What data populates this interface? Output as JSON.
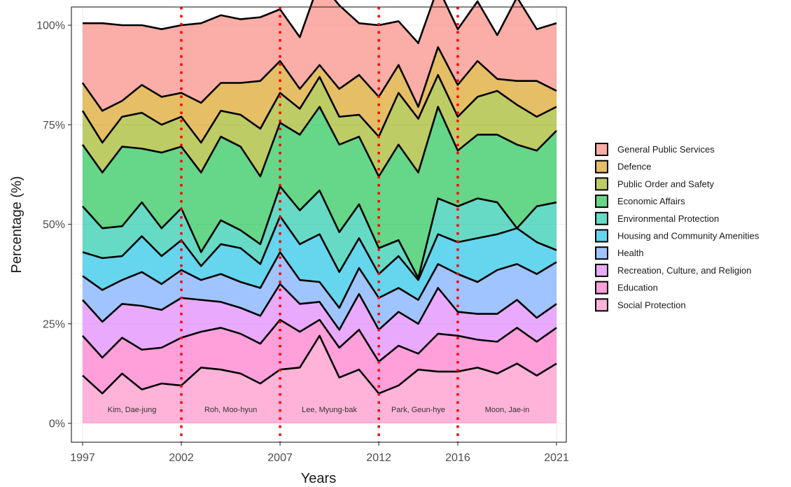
{
  "chart_data": {
    "type": "area",
    "xlabel": "Years",
    "ylabel": "Percentage (%)",
    "x": [
      1997,
      1998,
      1999,
      2000,
      2001,
      2002,
      2003,
      2004,
      2005,
      2006,
      2007,
      2008,
      2009,
      2010,
      2011,
      2012,
      2013,
      2014,
      2015,
      2016,
      2017,
      2018,
      2019,
      2020,
      2021
    ],
    "xlim": [
      1997,
      2021
    ],
    "ylim": [
      0,
      100
    ],
    "x_ticks": [
      1997,
      2002,
      2007,
      2012,
      2016,
      2021
    ],
    "y_ticks": [
      0,
      25,
      50,
      75,
      100
    ],
    "y_tick_labels": [
      "0%",
      "25%",
      "50%",
      "75%",
      "100%"
    ],
    "stacked": true,
    "stack_order": "bottom-to-top follows series list from last to first",
    "grid": true,
    "legend_position": "right",
    "series": [
      {
        "name": "General Public Services",
        "color": "#F8766D",
        "values": [
          15.0,
          22.0,
          19.0,
          15.0,
          17.0,
          17.0,
          20.0,
          17.0,
          16.0,
          16.0,
          13.0,
          13.0,
          21.0,
          21.0,
          13.0,
          18.0,
          11.0,
          16.0,
          15.0,
          14.0,
          15.0,
          11.0,
          21.0,
          13.0,
          17.0
        ]
      },
      {
        "name": "Defence",
        "color": "#D39200",
        "values": [
          7.0,
          8.0,
          4.0,
          7.0,
          7.0,
          6.0,
          10.0,
          7.0,
          8.0,
          12.0,
          8.0,
          5.0,
          3.0,
          7.0,
          10.0,
          10.0,
          7.0,
          3.0,
          7.0,
          8.0,
          9.0,
          3.0,
          6.0,
          9.0,
          4.0
        ]
      },
      {
        "name": "Public Order and Safety",
        "color": "#93AA00",
        "values": [
          8.5,
          7.5,
          7.5,
          9.0,
          7.0,
          7.5,
          7.5,
          6.5,
          8.0,
          12.0,
          7.5,
          6.5,
          7.5,
          7.0,
          5.5,
          10.0,
          13.0,
          13.5,
          8.0,
          8.5,
          9.5,
          11.0,
          10.0,
          8.5,
          6.0
        ]
      },
      {
        "name": "Economic Affairs",
        "color": "#00BA38",
        "values": [
          15.5,
          14.0,
          20.0,
          13.5,
          19.0,
          15.5,
          20.0,
          21.0,
          21.0,
          17.0,
          16.0,
          19.0,
          21.0,
          22.0,
          17.0,
          18.0,
          24.0,
          26.5,
          23.0,
          14.0,
          16.0,
          17.0,
          21.0,
          14.0,
          18.0
        ]
      },
      {
        "name": "Environmental Protection",
        "color": "#00C19F",
        "values": [
          11.5,
          7.5,
          7.5,
          8.5,
          7.0,
          8.0,
          3.5,
          6.0,
          4.5,
          5.0,
          7.5,
          8.5,
          11.0,
          10.0,
          8.5,
          6.5,
          4.0,
          0.5,
          9.0,
          9.0,
          10.0,
          8.0,
          0.0,
          9.0,
          12.0
        ]
      },
      {
        "name": "Housing and Community Amenities",
        "color": "#00B9E3",
        "values": [
          6.0,
          8.0,
          6.0,
          9.0,
          7.0,
          7.5,
          3.5,
          7.5,
          8.5,
          6.0,
          9.0,
          9.0,
          12.0,
          9.0,
          7.5,
          6.0,
          8.0,
          5.0,
          7.5,
          8.0,
          11.0,
          9.0,
          9.0,
          8.0,
          3.0
        ]
      },
      {
        "name": "Health",
        "color": "#619CFF",
        "values": [
          6.0,
          8.0,
          6.0,
          8.5,
          6.5,
          7.0,
          5.0,
          7.0,
          6.5,
          7.0,
          8.0,
          6.0,
          5.0,
          5.5,
          6.5,
          8.0,
          6.0,
          6.0,
          6.0,
          9.5,
          8.0,
          11.0,
          9.0,
          11.0,
          10.5
        ]
      },
      {
        "name": "Recreation, Culture, and Religion",
        "color": "#DB72FB",
        "values": [
          9.0,
          9.0,
          8.5,
          11.0,
          9.5,
          10.0,
          8.0,
          6.5,
          6.5,
          7.0,
          9.0,
          7.0,
          4.5,
          4.5,
          9.0,
          8.0,
          8.5,
          7.5,
          11.5,
          6.0,
          6.5,
          7.0,
          7.0,
          6.0,
          6.0
        ]
      },
      {
        "name": "Education",
        "color": "#FF61C3",
        "values": [
          10.0,
          9.0,
          9.0,
          10.0,
          9.0,
          12.0,
          9.0,
          10.5,
          10.0,
          10.0,
          12.5,
          9.0,
          4.0,
          7.5,
          10.0,
          8.0,
          10.0,
          4.0,
          9.5,
          9.0,
          7.0,
          8.0,
          9.0,
          8.5,
          9.0
        ]
      },
      {
        "name": "Social Protection",
        "color": "#FF80C0",
        "values": [
          12.0,
          7.5,
          12.5,
          8.5,
          10.0,
          9.5,
          14.0,
          13.5,
          12.5,
          10.0,
          13.5,
          14.0,
          22.0,
          11.5,
          13.5,
          7.5,
          9.5,
          13.5,
          13.0,
          13.0,
          14.0,
          12.5,
          15.0,
          12.0,
          15.0
        ]
      }
    ],
    "administrations": [
      {
        "name": "Kim, Dae-jung",
        "start": 1997,
        "end": 2002
      },
      {
        "name": "Roh, Moo-hyun",
        "start": 2002,
        "end": 2007
      },
      {
        "name": "Lee, Myung-bak",
        "start": 2007,
        "end": 2012
      },
      {
        "name": "Park, Geun-hye",
        "start": 2012,
        "end": 2016
      },
      {
        "name": "Moon, Jae-in",
        "start": 2016,
        "end": 2021
      }
    ],
    "vlines": [
      2002,
      2007,
      2012,
      2016
    ],
    "vline_color": "#ff0000"
  }
}
